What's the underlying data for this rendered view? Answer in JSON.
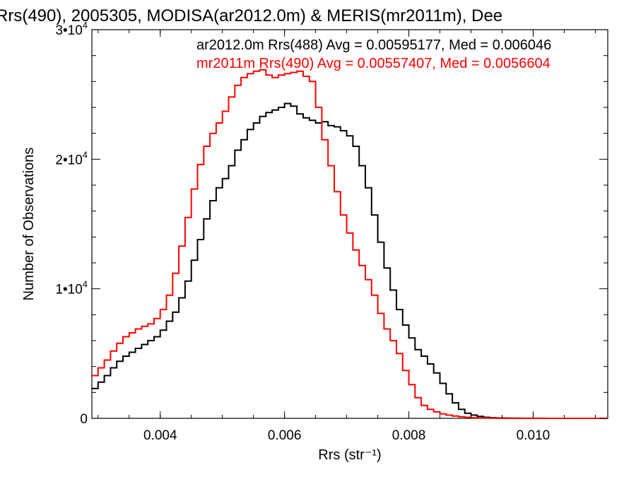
{
  "chart_data": {
    "type": "line",
    "title": "Rrs(490), 2005305, MODISA(ar2012.0m) & MERIS(mr2011m), Dee",
    "xlabel": "Rrs (str⁻¹)",
    "ylabel": "Number of Observations",
    "xlim": [
      0.0029,
      0.0112
    ],
    "ylim": [
      0,
      30000
    ],
    "grid": false,
    "legend_position": "top-right",
    "x_ticks": [
      {
        "value": 0.004,
        "label": "0.004"
      },
      {
        "value": 0.006,
        "label": "0.006"
      },
      {
        "value": 0.008,
        "label": "0.008"
      },
      {
        "value": 0.01,
        "label": "0.010"
      }
    ],
    "y_ticks": [
      {
        "value": 0,
        "label": "0",
        "exp": ""
      },
      {
        "value": 10000,
        "label": "1•10",
        "exp": "4"
      },
      {
        "value": 20000,
        "label": "2•10",
        "exp": "4"
      },
      {
        "value": 30000,
        "label": "3•10",
        "exp": "4"
      }
    ],
    "series": [
      {
        "name": "ar2012.0m Rrs(488) Avg = 0.00595177, Med = 0.006046",
        "color": "#000000",
        "x": [
          0.0029,
          0.003,
          0.0031,
          0.0032,
          0.0033,
          0.0034,
          0.0035,
          0.0036,
          0.0037,
          0.0038,
          0.0039,
          0.004,
          0.0041,
          0.0042,
          0.0043,
          0.0044,
          0.0045,
          0.0046,
          0.0047,
          0.0048,
          0.0049,
          0.005,
          0.0051,
          0.0052,
          0.0053,
          0.0054,
          0.0055,
          0.0056,
          0.0057,
          0.0058,
          0.0059,
          0.006,
          0.0061,
          0.0062,
          0.0063,
          0.0064,
          0.0065,
          0.0066,
          0.0067,
          0.0068,
          0.0069,
          0.007,
          0.0071,
          0.0072,
          0.0073,
          0.0074,
          0.0075,
          0.0076,
          0.0077,
          0.0078,
          0.0079,
          0.008,
          0.0081,
          0.0082,
          0.0083,
          0.0084,
          0.0085,
          0.0086,
          0.0087,
          0.0088,
          0.0089,
          0.009,
          0.0091,
          0.0092,
          0.0093,
          0.0094,
          0.0095,
          0.0096,
          0.0098,
          0.01,
          0.0102,
          0.0104,
          0.0106,
          0.0108,
          0.011,
          0.0112
        ],
        "y": [
          2300,
          2800,
          3300,
          3900,
          4400,
          4800,
          5100,
          5400,
          5700,
          6000,
          6300,
          6800,
          7500,
          8200,
          9300,
          10600,
          12200,
          13800,
          15400,
          16800,
          17800,
          18500,
          19500,
          20700,
          21500,
          22300,
          22800,
          23300,
          23600,
          23800,
          24000,
          24300,
          24100,
          23500,
          23200,
          23000,
          22800,
          22900,
          22600,
          22500,
          22200,
          21800,
          21000,
          19500,
          17800,
          15700,
          13600,
          11600,
          9900,
          8400,
          7200,
          6200,
          5300,
          4800,
          4200,
          3500,
          2700,
          1900,
          1200,
          700,
          400,
          250,
          150,
          80,
          50,
          30,
          20,
          10,
          5,
          3,
          2,
          1,
          1,
          0,
          0,
          0
        ]
      },
      {
        "name": "mr2011m Rrs(490) Avg = 0.00557407, Med = 0.0056604",
        "color": "#ff0000",
        "x": [
          0.0029,
          0.003,
          0.0031,
          0.0032,
          0.0033,
          0.0034,
          0.0035,
          0.0036,
          0.0037,
          0.0038,
          0.0039,
          0.004,
          0.0041,
          0.0042,
          0.0043,
          0.0044,
          0.0045,
          0.0046,
          0.0047,
          0.0048,
          0.0049,
          0.005,
          0.0051,
          0.0052,
          0.0053,
          0.0054,
          0.0055,
          0.0056,
          0.0057,
          0.0058,
          0.0059,
          0.006,
          0.0061,
          0.0062,
          0.0063,
          0.0064,
          0.0065,
          0.0066,
          0.0067,
          0.0068,
          0.0069,
          0.007,
          0.0071,
          0.0072,
          0.0073,
          0.0074,
          0.0075,
          0.0076,
          0.0077,
          0.0078,
          0.0079,
          0.008,
          0.0081,
          0.0082,
          0.0083,
          0.0084,
          0.0085,
          0.0086,
          0.0087,
          0.0088,
          0.0089,
          0.009,
          0.0091,
          0.0092,
          0.0093,
          0.0094,
          0.0095,
          0.0096,
          0.0098,
          0.01,
          0.0102,
          0.0104,
          0.0106,
          0.0108,
          0.011,
          0.0112
        ],
        "y": [
          3300,
          3900,
          4500,
          5200,
          5800,
          6300,
          6600,
          6900,
          7100,
          7300,
          7700,
          8400,
          9500,
          11200,
          13300,
          15500,
          17700,
          19600,
          21000,
          22000,
          22800,
          23700,
          24800,
          25700,
          26300,
          26600,
          26800,
          26900,
          26500,
          26300,
          26500,
          26600,
          26700,
          26800,
          26400,
          26000,
          24000,
          21500,
          19500,
          17500,
          15700,
          14300,
          13000,
          11800,
          10700,
          9500,
          8100,
          6900,
          6000,
          5000,
          3700,
          2600,
          1600,
          1000,
          700,
          500,
          350,
          250,
          180,
          120,
          80,
          50,
          30,
          20,
          10,
          5,
          3,
          2,
          1,
          0,
          0,
          0,
          0,
          0,
          0,
          0
        ]
      }
    ]
  }
}
